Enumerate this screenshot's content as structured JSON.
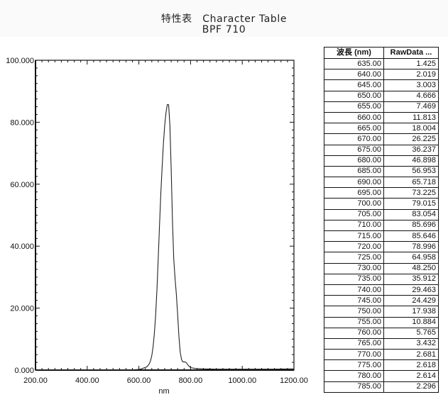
{
  "header": {
    "title": "特性表　Character Table",
    "subtitle": "BPF 710"
  },
  "table": {
    "headers": [
      "波長 (nm)",
      "RawData ..."
    ],
    "rows": [
      [
        "635.00",
        "1.425"
      ],
      [
        "640.00",
        "2.019"
      ],
      [
        "645.00",
        "3.003"
      ],
      [
        "650.00",
        "4.666"
      ],
      [
        "655.00",
        "7.469"
      ],
      [
        "660.00",
        "11.813"
      ],
      [
        "665.00",
        "18.004"
      ],
      [
        "670.00",
        "26.225"
      ],
      [
        "675.00",
        "36.237"
      ],
      [
        "680.00",
        "46.898"
      ],
      [
        "685.00",
        "56.953"
      ],
      [
        "690.00",
        "65.718"
      ],
      [
        "695.00",
        "73.225"
      ],
      [
        "700.00",
        "79.015"
      ],
      [
        "705.00",
        "83.054"
      ],
      [
        "710.00",
        "85.696"
      ],
      [
        "715.00",
        "85.646"
      ],
      [
        "720.00",
        "78.996"
      ],
      [
        "725.00",
        "64.958"
      ],
      [
        "730.00",
        "48.250"
      ],
      [
        "735.00",
        "35.912"
      ],
      [
        "740.00",
        "29.463"
      ],
      [
        "745.00",
        "24.429"
      ],
      [
        "750.00",
        "17.938"
      ],
      [
        "755.00",
        "10.884"
      ],
      [
        "760.00",
        "5.765"
      ],
      [
        "765.00",
        "3.432"
      ],
      [
        "770.00",
        "2.681"
      ],
      [
        "775.00",
        "2.618"
      ],
      [
        "780.00",
        "2.614"
      ],
      [
        "785.00",
        "2.296"
      ]
    ]
  },
  "chart_data": {
    "type": "line",
    "title": "特性表　Character Table / BPF 710",
    "xlabel": "nm",
    "ylabel": "",
    "xlim": [
      200,
      1200
    ],
    "ylim": [
      0,
      100
    ],
    "x_ticks": [
      "200.00",
      "400.00",
      "600.00",
      "800.00",
      "1000.00",
      "1200.00"
    ],
    "y_ticks": [
      "0.000",
      "20.000",
      "40.000",
      "60.000",
      "80.000",
      "100.000"
    ],
    "grid": false,
    "legend": null,
    "series": [
      {
        "name": "RawData",
        "x": [
          200,
          400,
          580,
          600,
          610,
          620,
          630,
          635,
          640,
          645,
          650,
          655,
          660,
          665,
          670,
          675,
          680,
          685,
          690,
          695,
          700,
          705,
          710,
          715,
          720,
          725,
          730,
          735,
          740,
          745,
          750,
          755,
          760,
          765,
          770,
          775,
          780,
          785,
          790,
          800,
          820,
          850,
          900,
          1000,
          1100,
          1200
        ],
        "y": [
          0.1,
          0.1,
          0.1,
          0.2,
          0.4,
          0.7,
          1.0,
          1.425,
          2.019,
          3.003,
          4.666,
          7.469,
          11.813,
          18.004,
          26.225,
          36.237,
          46.898,
          56.953,
          65.718,
          73.225,
          79.015,
          83.054,
          85.696,
          85.646,
          78.996,
          64.958,
          48.25,
          35.912,
          29.463,
          24.429,
          17.938,
          10.884,
          5.765,
          3.432,
          2.681,
          2.618,
          2.614,
          2.296,
          1.6,
          0.8,
          0.5,
          0.4,
          0.3,
          0.3,
          0.3,
          0.4
        ]
      }
    ]
  }
}
